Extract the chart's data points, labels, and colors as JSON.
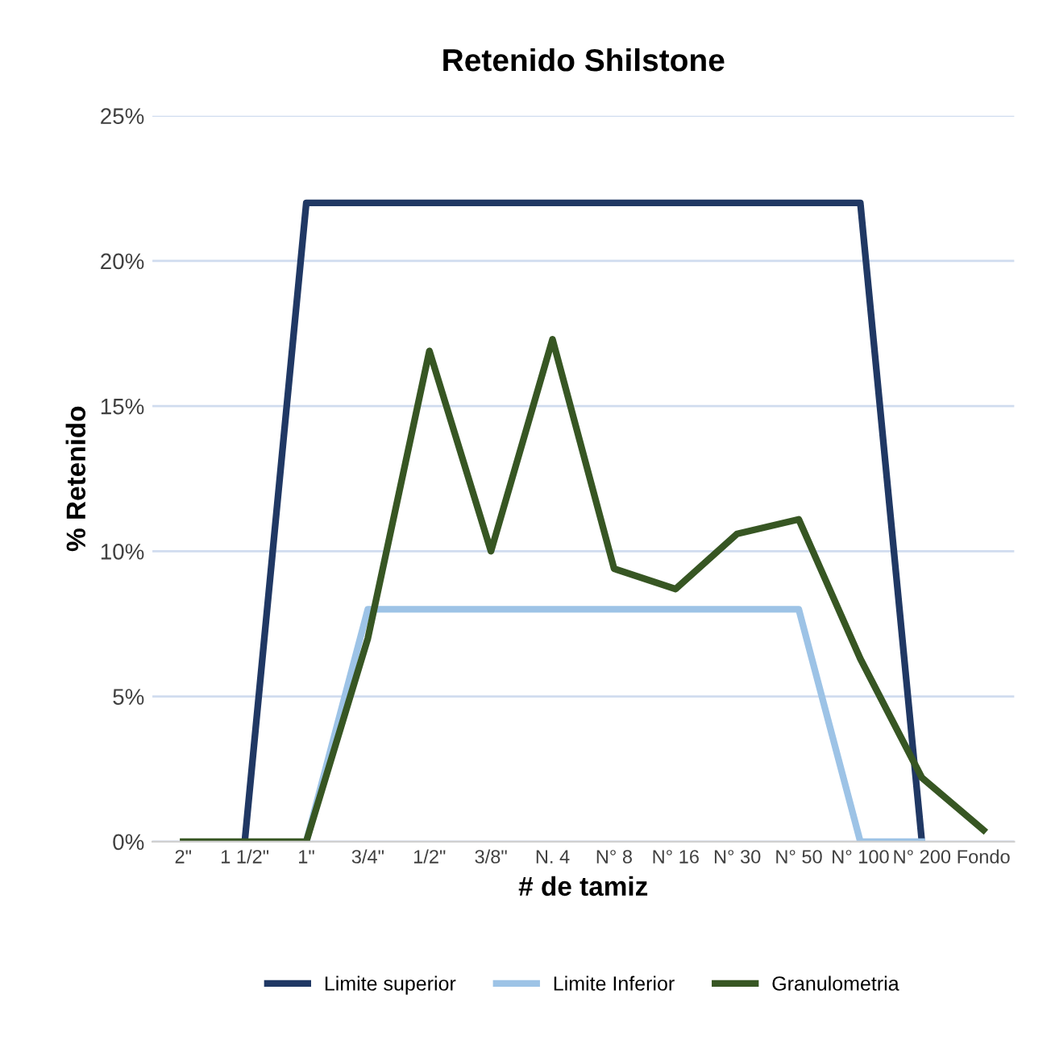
{
  "chart_data": {
    "type": "line",
    "title": "Retenido Shilstone",
    "xlabel": "# de tamiz",
    "ylabel": "% Retenido",
    "categories": [
      "2\"",
      "1 1/2\"",
      "1\"",
      "3/4\"",
      "1/2\"",
      "3/8\"",
      "N. 4",
      "N° 8",
      "N° 16",
      "N° 30",
      "N° 50",
      "N° 100",
      "N° 200",
      "Fondo"
    ],
    "series": [
      {
        "name": "Limite superior",
        "color": "#203864",
        "values": [
          null,
          0,
          22,
          22,
          22,
          22,
          22,
          22,
          22,
          22,
          22,
          22,
          0,
          null
        ]
      },
      {
        "name": "Limite Inferior",
        "color": "#9dc3e6",
        "values": [
          null,
          null,
          0,
          8,
          8,
          8,
          8,
          8,
          8,
          8,
          8,
          0,
          0,
          null
        ]
      },
      {
        "name": "Granulometria",
        "color": "#375623",
        "values": [
          0,
          0,
          0,
          7,
          16.9,
          10,
          17.3,
          9.4,
          8.7,
          10.6,
          11.1,
          6.3,
          2.2,
          0.4
        ]
      }
    ],
    "ylim": [
      0,
      25
    ],
    "yticks": [
      {
        "value": 0,
        "label": "0%"
      },
      {
        "value": 5,
        "label": "5%"
      },
      {
        "value": 10,
        "label": "10%"
      },
      {
        "value": 15,
        "label": "15%"
      },
      {
        "value": 20,
        "label": "20%"
      },
      {
        "value": 25,
        "label": "25%"
      }
    ],
    "grid": "y",
    "legend": "bottom",
    "marker": "none",
    "line_style": "solid"
  }
}
